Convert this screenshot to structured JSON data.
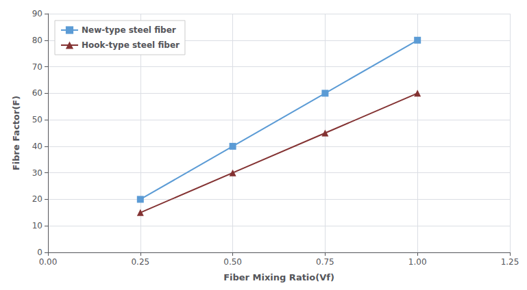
{
  "chart_data": {
    "type": "line",
    "xlabel": "Fiber Mixing Ratio(Vf)",
    "ylabel": "Fibre Factor(F)",
    "x": [
      0.25,
      0.5,
      0.75,
      1.0
    ],
    "series": [
      {
        "name": "New-type steel fiber",
        "color": "#5B9BD5",
        "marker": "square",
        "values": [
          20,
          40,
          60,
          80
        ]
      },
      {
        "name": "Hook-type steel fiber",
        "color": "#833232",
        "marker": "triangle",
        "values": [
          15,
          30,
          45,
          60
        ]
      }
    ],
    "xlim": [
      0.0,
      1.25
    ],
    "xticks": [
      {
        "value": 0.0,
        "label": "0.00"
      },
      0.25,
      {
        "value": 0.5,
        "label": "0.50"
      },
      0.75,
      {
        "value": 1.0,
        "label": "1.00"
      },
      1.25
    ],
    "ylim": [
      0,
      90
    ],
    "yticks": [
      0,
      10,
      20,
      30,
      40,
      50,
      60,
      70,
      80,
      90
    ],
    "grid": true,
    "legend": "upper left"
  }
}
